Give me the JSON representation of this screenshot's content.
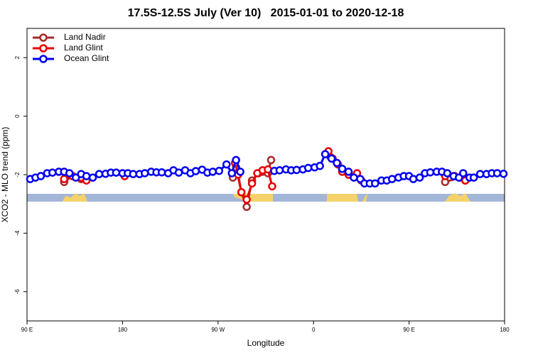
{
  "chart_data": {
    "type": "line",
    "title": "17.5S-12.5S July (Ver 10)   2015-01-01 to 2020-12-18",
    "x_label": "Longitude",
    "y_label": "XCO2 - MLO trend (ppm)",
    "xlim": [
      90,
      540
    ],
    "xticks": [
      {
        "value": 90,
        "label": "90 E"
      },
      180,
      {
        "value": 270,
        "label": "90 W"
      },
      {
        "value": 360,
        "label": "0"
      },
      {
        "value": 450,
        "label": "90 E"
      },
      {
        "value": 540,
        "label": "180"
      }
    ],
    "ylim": [
      -7,
      3
    ],
    "yticks": [
      2,
      0,
      -2,
      -4,
      -6
    ],
    "legend": "top-left",
    "series": [
      {
        "name": "Land Nadir",
        "color": "#a52a2a",
        "x": [
          125,
          133,
          141,
          null,
          284,
          287,
          292,
          297,
          302,
          308,
          312,
          317,
          320,
          null,
          376,
          null,
          484,
          498,
          503
        ],
        "values": [
          -2.25,
          -2.05,
          -2.15,
          null,
          -2.1,
          -1.75,
          -2.6,
          -3.1,
          -2.2,
          -1.95,
          -1.9,
          -1.95,
          -1.5,
          null,
          -1.4,
          null,
          -2.25,
          -2.1,
          -2.2
        ]
      },
      {
        "name": "Land Glint",
        "color": "#e80000",
        "x": [
          125,
          133,
          141,
          146,
          null,
          182,
          null,
          286,
          289,
          292,
          297,
          302,
          307,
          312,
          317,
          321,
          null,
          374,
          378,
          383,
          387,
          393,
          401,
          405,
          null,
          484,
          493,
          503
        ],
        "values": [
          -2.15,
          -2.05,
          -2.1,
          -2.2,
          null,
          -2.05,
          null,
          -1.6,
          -2.0,
          -2.6,
          -2.85,
          -2.3,
          -1.95,
          -1.85,
          -1.82,
          -2.4,
          null,
          -1.2,
          -1.45,
          -1.65,
          -1.9,
          -2.0,
          -1.95,
          -2.2,
          null,
          -2.05,
          -2.05,
          -2.2
        ]
      },
      {
        "name": "Ocean Glint",
        "color": "#0000ee",
        "x": [
          93,
          98,
          103,
          109,
          114,
          120,
          125,
          130,
          136,
          141,
          146,
          152,
          158,
          164,
          169,
          174,
          180,
          185,
          190,
          196,
          201,
          207,
          212,
          217,
          223,
          228,
          233,
          239,
          244,
          249,
          255,
          260,
          265,
          271,
          278,
          283,
          287,
          291,
          null,
          323,
          328,
          334,
          339,
          344,
          350,
          355,
          361,
          366,
          371,
          377,
          382,
          387,
          393,
          398,
          404,
          408,
          413,
          418,
          424,
          429,
          434,
          440,
          445,
          450,
          454,
          460,
          465,
          470,
          476,
          481,
          486,
          492,
          497,
          501,
          507,
          511,
          517,
          523,
          528,
          533,
          539
        ],
        "values": [
          -2.15,
          -2.1,
          -2.05,
          -1.95,
          -1.93,
          -1.9,
          -1.9,
          -1.95,
          -2.1,
          -1.98,
          -2.05,
          -2.1,
          -1.98,
          -1.97,
          -1.93,
          -1.93,
          -1.95,
          -1.95,
          -1.98,
          -1.98,
          -1.95,
          -1.9,
          -1.92,
          -1.92,
          -1.95,
          -1.85,
          -1.93,
          -1.85,
          -1.95,
          -1.88,
          -1.83,
          -1.93,
          -1.9,
          -1.87,
          -1.65,
          -1.95,
          -1.5,
          -1.9,
          null,
          -1.87,
          -1.85,
          -1.82,
          -1.85,
          -1.84,
          -1.82,
          -1.77,
          -1.75,
          -1.7,
          -1.3,
          -1.45,
          -1.6,
          -1.8,
          -1.9,
          -2.1,
          -2.15,
          -2.3,
          -2.3,
          -2.3,
          -2.2,
          -2.2,
          -2.15,
          -2.1,
          -2.05,
          -2.05,
          -2.15,
          -2.1,
          -1.95,
          -1.92,
          -1.9,
          -1.9,
          -1.95,
          -2.05,
          -2.1,
          -1.95,
          -2.1,
          -2.1,
          -1.98,
          -1.98,
          -1.95,
          -1.95,
          -1.97
        ]
      }
    ]
  }
}
